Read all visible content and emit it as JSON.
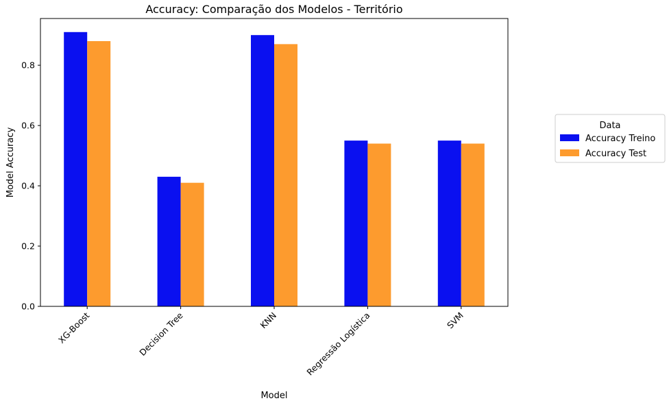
{
  "chart_data": {
    "type": "bar",
    "title": "Accuracy: Comparação dos Modelos - Território",
    "xlabel": "Model",
    "ylabel": "Model Accuracy",
    "categories": [
      "XG-Boost",
      "Decision Tree",
      "KNN",
      "Regressão Logística",
      "SVM"
    ],
    "series": [
      {
        "name": "Accuracy Treino",
        "color": "#0a10f0",
        "values": [
          0.91,
          0.43,
          0.9,
          0.55,
          0.55
        ]
      },
      {
        "name": "Accuracy Test",
        "color": "#fd9b2e",
        "values": [
          0.88,
          0.41,
          0.87,
          0.54,
          0.54
        ]
      }
    ],
    "ylim": [
      0,
      0.955
    ],
    "yticks": [
      0.0,
      0.2,
      0.4,
      0.6,
      0.8
    ],
    "ytick_labels": [
      "0.0",
      "0.2",
      "0.4",
      "0.6",
      "0.8"
    ],
    "grid": false,
    "legend": {
      "title": "Data",
      "placement": "outside-right"
    }
  }
}
